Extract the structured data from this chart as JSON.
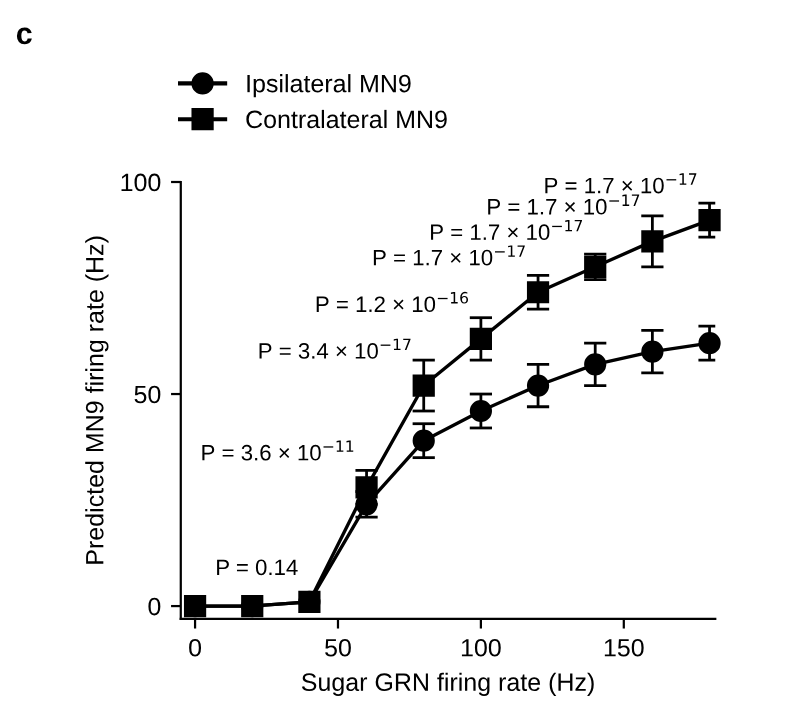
{
  "chart_data": {
    "type": "line",
    "xlabel": "Sugar GRN firing rate (Hz)",
    "ylabel": "Predicted MN9 firing rate (Hz)",
    "x": [
      0,
      20,
      40,
      60,
      80,
      100,
      120,
      140,
      160,
      180
    ],
    "series": [
      {
        "name": "Ipsilateral MN9",
        "color": "#000000",
        "marker": "circle",
        "values": [
          0,
          0,
          1,
          24,
          39,
          46,
          52,
          57,
          60,
          62
        ],
        "errors": [
          null,
          null,
          null,
          3,
          4,
          4,
          5,
          5,
          5,
          4
        ]
      },
      {
        "name": "Contralateral MN9",
        "color": "#000000",
        "marker": "square",
        "values": [
          0,
          0,
          1,
          28,
          52,
          63,
          74,
          80,
          86,
          91
        ],
        "errors": [
          null,
          null,
          null,
          4,
          6,
          5,
          4,
          3,
          6,
          4
        ]
      }
    ],
    "xlim": [
      -5,
      182
    ],
    "ylim": [
      -3,
      100
    ],
    "xticks": [
      0,
      50,
      100,
      150
    ],
    "yticks": [
      0,
      50,
      100
    ],
    "legend": "top left",
    "grid": false,
    "line_style": "solid",
    "annotations": [
      "c",
      {
        "text": "P = 0.14",
        "x": 40,
        "y": 1
      },
      {
        "text": "P = 3.6 × 10$^{−11}$",
        "x": 60,
        "y": 28
      },
      {
        "text": "P = 3.4 × 10$^{−17}$",
        "x": 80,
        "y": 52
      },
      {
        "text": "P = 1.2 × 10$^{−16}$",
        "x": 100,
        "y": 63
      },
      {
        "text": "P = 1.7 × 10$^{−17}$",
        "x": 120,
        "y": 74
      },
      {
        "text": "P = 1.7 × 10$^{−17}$",
        "x": 140,
        "y": 80
      },
      {
        "text": "P = 1.7 × 10$^{−17}$",
        "x": 160,
        "y": 86
      },
      {
        "text": "P = 1.7 × 10$^{−17}$",
        "x": 180,
        "y": 91
      }
    ]
  }
}
